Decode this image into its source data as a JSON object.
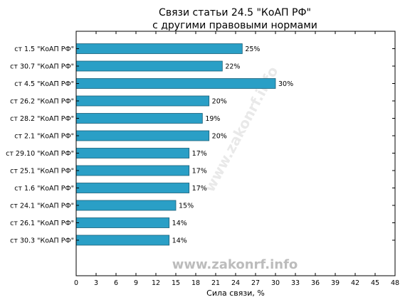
{
  "chart_data": {
    "type": "bar",
    "orientation": "horizontal",
    "title": "Связи статьи 24.5 \"КоАП РФ\"",
    "subtitle": "с другими правовыми нормами",
    "xlabel": "Сила связи, %",
    "ylabel": "",
    "xlim": [
      0,
      48
    ],
    "xticks": [
      0,
      3,
      6,
      9,
      12,
      15,
      18,
      21,
      24,
      27,
      30,
      33,
      36,
      39,
      42,
      45,
      48
    ],
    "grid": false,
    "categories": [
      "ст 1.5 \"КоАП РФ\"",
      "ст 30.7 \"КоАП РФ\"",
      "ст 4.5 \"КоАП РФ\"",
      "ст 26.2 \"КоАП РФ\"",
      "ст 28.2 \"КоАП РФ\"",
      "ст 2.1 \"КоАП РФ\"",
      "ст 29.10 \"КоАП РФ\"",
      "ст 25.1 \"КоАП РФ\"",
      "ст 1.6 \"КоАП РФ\"",
      "ст 24.1 \"КоАП РФ\"",
      "ст 26.1 \"КоАП РФ\"",
      "ст 30.3 \"КоАП РФ\""
    ],
    "values": [
      25,
      22,
      30,
      20,
      19,
      20,
      17,
      17,
      17,
      15,
      14,
      14
    ],
    "value_labels": [
      "25%",
      "22%",
      "30%",
      "20%",
      "19%",
      "20%",
      "17%",
      "17%",
      "17%",
      "15%",
      "14%",
      "14%"
    ],
    "bar_color": "#2a9fc6",
    "bar_edge_color": "#1a5f78",
    "watermark": "www.zakonrf.info",
    "diagonal_watermark": "www.zakonrf.info"
  }
}
